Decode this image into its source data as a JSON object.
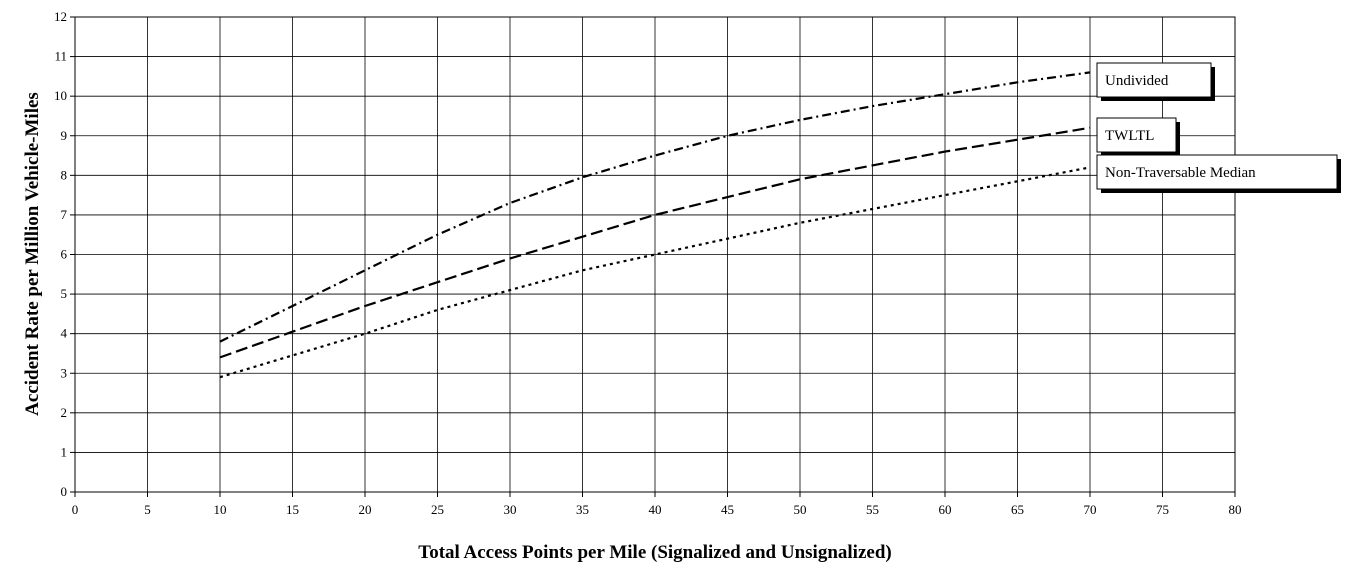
{
  "chart_data": {
    "type": "line",
    "title": "",
    "xlabel": "Total Access Points per Mile (Signalized and Unsignalized)",
    "ylabel": "Accident Rate per Million Vehicle-Miles",
    "xlim": [
      0,
      80
    ],
    "ylim": [
      0,
      12
    ],
    "xticks": [
      0,
      5,
      10,
      15,
      20,
      25,
      30,
      35,
      40,
      45,
      50,
      55,
      60,
      65,
      70,
      75,
      80
    ],
    "yticks": [
      0,
      1,
      2,
      3,
      4,
      5,
      6,
      7,
      8,
      9,
      10,
      11,
      12
    ],
    "grid": true,
    "legend": "labels at line ends (right)",
    "series": [
      {
        "name": "Undivided",
        "dash": "dash-dot",
        "x": [
          10,
          15,
          20,
          25,
          30,
          35,
          40,
          45,
          50,
          55,
          60,
          65,
          70
        ],
        "y": [
          3.8,
          4.7,
          5.6,
          6.5,
          7.3,
          7.95,
          8.5,
          9.0,
          9.4,
          9.75,
          10.05,
          10.35,
          10.6
        ]
      },
      {
        "name": "TWLTL",
        "dash": "long-dash",
        "x": [
          10,
          15,
          20,
          25,
          30,
          35,
          40,
          45,
          50,
          55,
          60,
          65,
          70
        ],
        "y": [
          3.4,
          4.05,
          4.7,
          5.3,
          5.9,
          6.45,
          7.0,
          7.45,
          7.9,
          8.25,
          8.6,
          8.9,
          9.2
        ]
      },
      {
        "name": "Non-Traversable Median",
        "dash": "dotted",
        "x": [
          10,
          15,
          20,
          25,
          30,
          35,
          40,
          45,
          50,
          55,
          60,
          65,
          70
        ],
        "y": [
          2.9,
          3.45,
          4.0,
          4.6,
          5.1,
          5.6,
          6.0,
          6.4,
          6.8,
          7.15,
          7.5,
          7.85,
          8.2
        ]
      }
    ]
  }
}
